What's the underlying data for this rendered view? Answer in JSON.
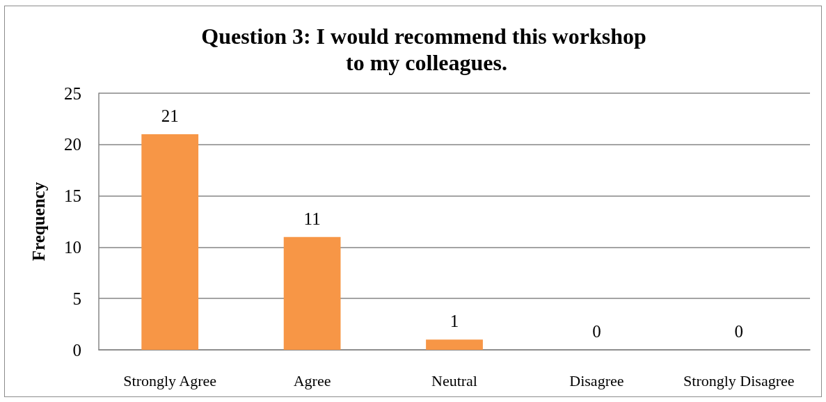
{
  "chart_data": {
    "type": "bar",
    "title": "Question 3: I would recommend this workshop to my colleagues.",
    "ylabel": "Frequency",
    "categories": [
      "Strongly Agree",
      "Agree",
      "Neutral",
      "Disagree",
      "Strongly Disagree"
    ],
    "values": [
      21,
      11,
      1,
      0,
      0
    ],
    "color": "#f79646",
    "ylim": [
      0,
      25
    ],
    "yticks": [
      0,
      5,
      10,
      15,
      20,
      25
    ],
    "grid": "y",
    "data_labels": true
  }
}
